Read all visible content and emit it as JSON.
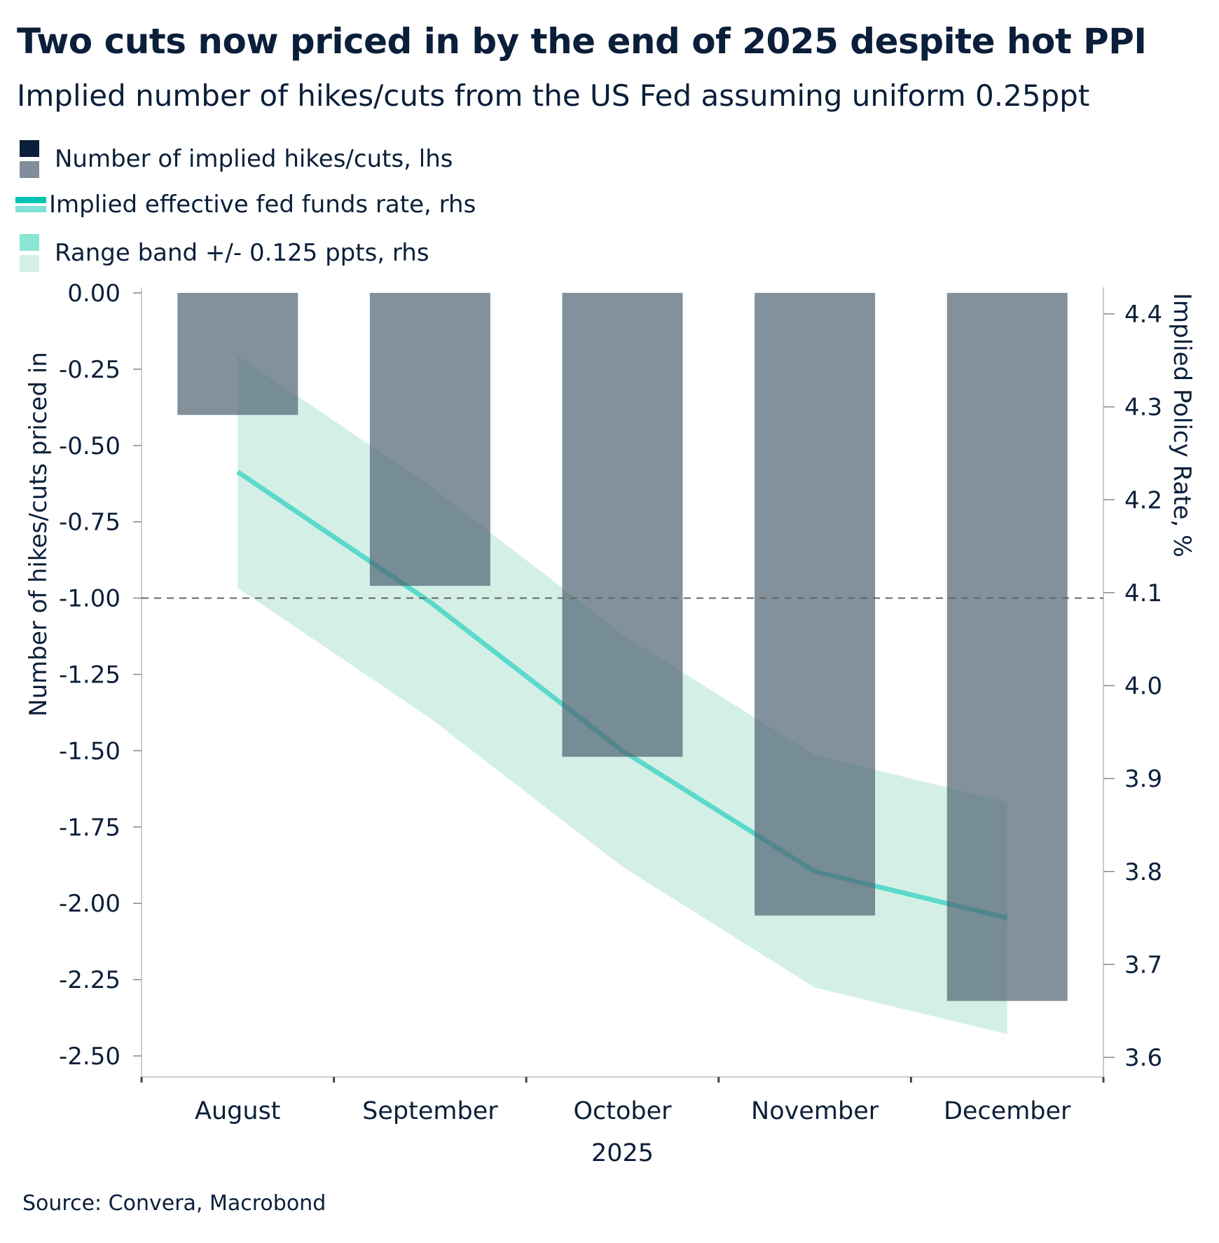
{
  "chart_data": {
    "type": "bar+line",
    "title": "Two cuts now priced in by the end of 2025 despite hot PPI",
    "subtitle": "Implied number of hikes/cuts from the US Fed assuming uniform 0.25ppt",
    "categories": [
      "August",
      "September",
      "October",
      "November",
      "December"
    ],
    "x_group_label": "2025",
    "ylabel_left": "Number of hikes/cuts priced in",
    "ylabel_right": "Implied Policy Rate, %",
    "ylim_left": [
      -2.5,
      0
    ],
    "ylim_right": [
      3.6,
      4.4
    ],
    "yticks_left": [
      "0.00",
      "-0.25",
      "-0.50",
      "-0.75",
      "-1.00",
      "-1.25",
      "-1.50",
      "-1.75",
      "-2.00",
      "-2.25",
      "-2.50"
    ],
    "yticks_right": [
      "4.4",
      "4.3",
      "4.2",
      "4.1",
      "4.0",
      "3.9",
      "3.8",
      "3.7",
      "3.6"
    ],
    "reference_line_left": -1.0,
    "legend_placement": "top-left",
    "series": [
      {
        "name": "Number of implied hikes/cuts, lhs",
        "type": "bar",
        "axis": "left",
        "values": [
          -0.4,
          -0.96,
          -1.52,
          -2.04,
          -2.32
        ],
        "color": "#7f8e9a"
      },
      {
        "name": "Implied effective fed funds rate, rhs",
        "type": "line",
        "axis": "right",
        "values": [
          4.23,
          4.09,
          3.93,
          3.8,
          3.75
        ],
        "color": "#5dd9cc"
      },
      {
        "name": "Range band +/- 0.125 ppts, rhs",
        "type": "area",
        "axis": "right",
        "upper": [
          4.355,
          4.215,
          4.055,
          3.925,
          3.875
        ],
        "lower": [
          4.105,
          3.965,
          3.805,
          3.675,
          3.625
        ],
        "color": "#d4f0e6"
      }
    ],
    "source": "Source: Convera, Macrobond"
  }
}
